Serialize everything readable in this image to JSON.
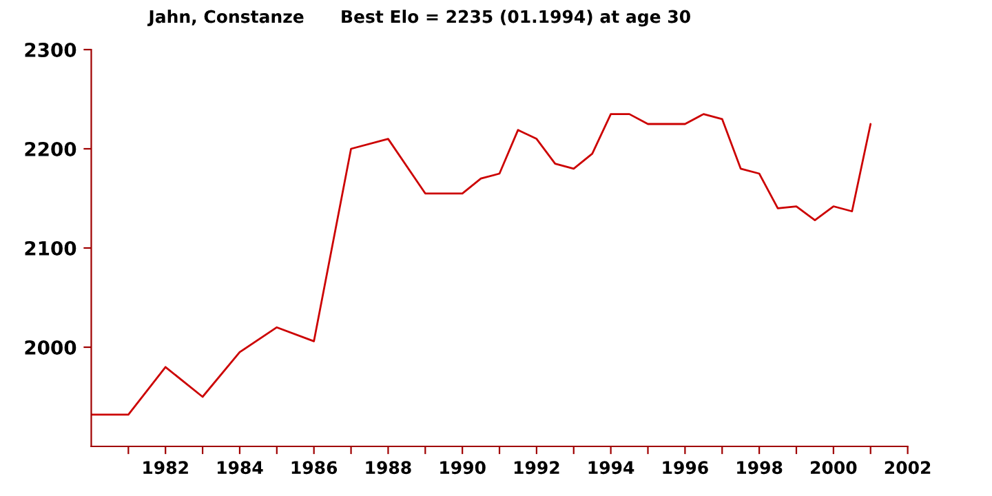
{
  "chart_data": {
    "type": "line",
    "title": "Jahn, Constanze      Best Elo = 2235 (01.1994) at age 30",
    "x": [
      1980.0,
      1981.0,
      1982.0,
      1983.0,
      1984.0,
      1985.0,
      1986.0,
      1987.0,
      1988.0,
      1989.0,
      1990.0,
      1990.5,
      1991.0,
      1991.5,
      1992.0,
      1992.5,
      1993.0,
      1993.5,
      1994.0,
      1994.5,
      1995.0,
      1996.0,
      1996.5,
      1997.0,
      1997.5,
      1998.0,
      1998.5,
      1999.0,
      1999.5,
      2000.0,
      2000.5,
      2001.0
    ],
    "series": [
      {
        "color": "#cc0000",
        "values": [
          1932,
          1932,
          1980,
          1950,
          1995,
          2020,
          2006,
          2200,
          2210,
          2155,
          2155,
          2170,
          2175,
          2219,
          2210,
          2185,
          2180,
          2195,
          2235,
          2235,
          2225,
          2225,
          2235,
          2230,
          2180,
          2175,
          2140,
          2142,
          2128,
          2142,
          2137,
          2225
        ]
      }
    ],
    "xlim": [
      1980,
      2002
    ],
    "ylim": [
      1900,
      2300
    ],
    "xticks": [
      {
        "value": 1981,
        "label": null
      },
      1982,
      {
        "value": 1983,
        "label": null
      },
      1984,
      {
        "value": 1985,
        "label": null
      },
      1986,
      {
        "value": 1987,
        "label": null
      },
      1988,
      {
        "value": 1989,
        "label": null
      },
      1990,
      {
        "value": 1991,
        "label": null
      },
      1992,
      {
        "value": 1993,
        "label": null
      },
      1994,
      {
        "value": 1995,
        "label": null
      },
      1996,
      {
        "value": 1997,
        "label": null
      },
      1998,
      {
        "value": 1999,
        "label": null
      },
      2000,
      {
        "value": 2001,
        "label": null
      },
      2002
    ],
    "yticks": [
      2000,
      2100,
      2200,
      2300
    ],
    "grid": false,
    "marker": "none",
    "line_style": "solid"
  }
}
